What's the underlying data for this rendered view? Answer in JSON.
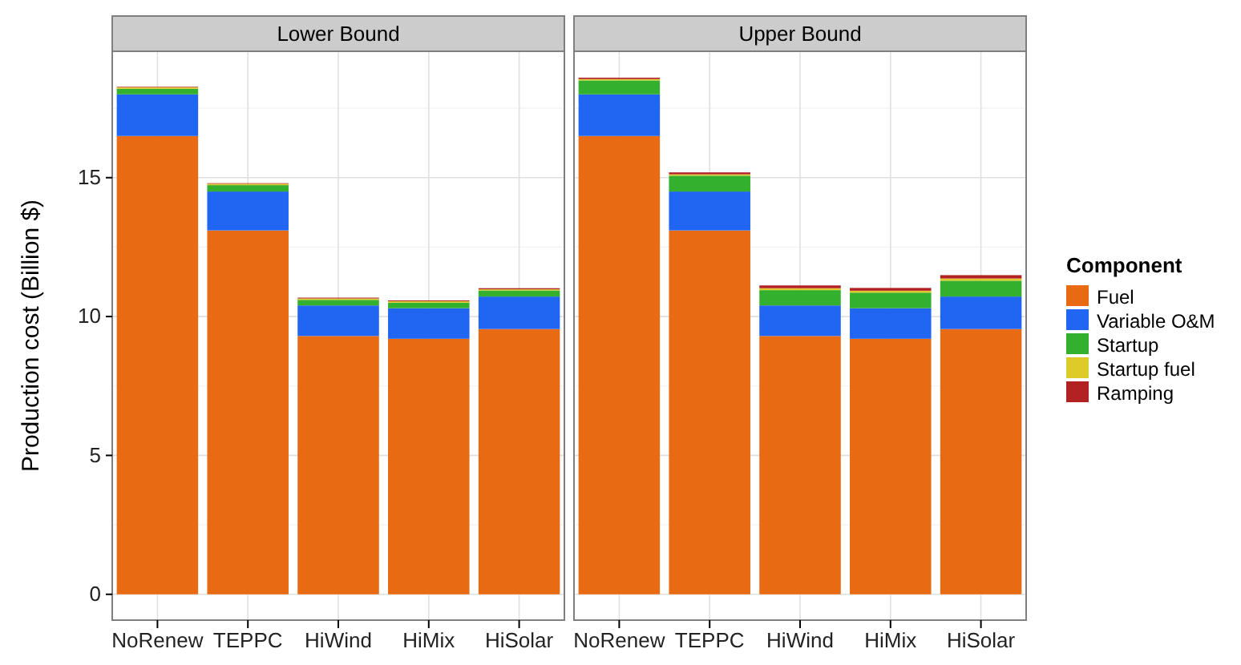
{
  "chart_data": [
    {
      "type": "bar",
      "title": "Lower Bound",
      "ylabel": "Production cost (Billion $)",
      "categories": [
        "NoRenew",
        "TEPPC",
        "HiWind",
        "HiMix",
        "HiSolar"
      ],
      "stacked": true,
      "ylim": [
        -0.93,
        19.55
      ],
      "yticks": [
        0,
        5,
        10,
        15
      ],
      "grid": true,
      "legend": false,
      "series": [
        {
          "color": "#e86a12",
          "values": [
            16.5,
            13.1,
            9.3,
            9.2,
            9.55
          ]
        },
        {
          "color": "#2166f2",
          "values": [
            1.5,
            1.4,
            1.1,
            1.1,
            1.17
          ]
        },
        {
          "color": "#33b02d",
          "values": [
            0.2,
            0.23,
            0.2,
            0.2,
            0.22
          ]
        },
        {
          "color": "#dccb29",
          "values": [
            0.05,
            0.05,
            0.05,
            0.05,
            0.04
          ]
        },
        {
          "color": "#b22222",
          "values": [
            0.02,
            0.02,
            0.03,
            0.03,
            0.04
          ]
        }
      ]
    },
    {
      "type": "bar",
      "title": "Upper Bound",
      "categories": [
        "NoRenew",
        "TEPPC",
        "HiWind",
        "HiMix",
        "HiSolar"
      ],
      "stacked": true,
      "ylim": [
        -0.93,
        19.55
      ],
      "yticks": [
        0,
        5,
        10,
        15
      ],
      "tick_labels": "x",
      "grid": true,
      "legend": "right",
      "legend_title": "Component",
      "series": [
        {
          "name": "Fuel",
          "color": "#e86a12",
          "values": [
            16.5,
            13.1,
            9.3,
            9.2,
            9.55
          ]
        },
        {
          "name": "Variable O&M",
          "color": "#2166f2",
          "values": [
            1.5,
            1.4,
            1.1,
            1.1,
            1.17
          ]
        },
        {
          "name": "Startup",
          "color": "#33b02d",
          "values": [
            0.5,
            0.57,
            0.55,
            0.56,
            0.57
          ]
        },
        {
          "name": "Startup fuel",
          "color": "#dccb29",
          "values": [
            0.05,
            0.05,
            0.07,
            0.07,
            0.08
          ]
        },
        {
          "name": "Ramping",
          "color": "#b22222",
          "values": [
            0.05,
            0.07,
            0.1,
            0.1,
            0.12
          ]
        }
      ]
    }
  ]
}
